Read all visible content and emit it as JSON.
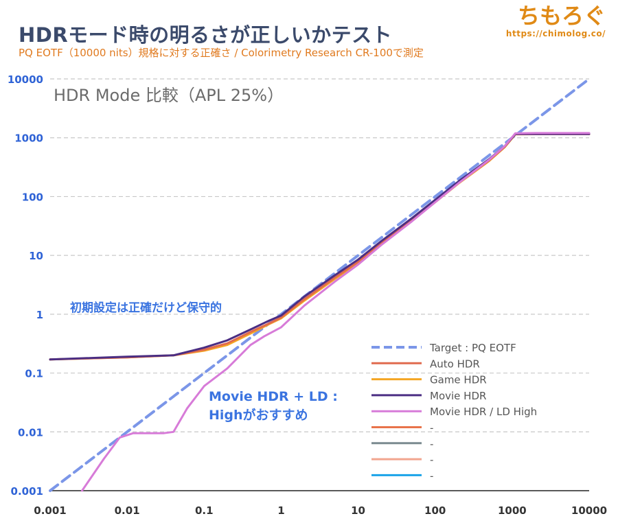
{
  "header": {
    "title": "HDRモード時の明るさが正しいかテスト",
    "subtitle": "PQ EOTF（10000 nits）規格に対する正確さ / Colorimetry Research CR-100で測定",
    "brand_name": "ちもろぐ",
    "brand_url": "https://chimolog.co/"
  },
  "chart_data": {
    "type": "line",
    "title": "HDR Mode 比較（APL 25%）",
    "xscale": "log",
    "yscale": "log",
    "xlim": [
      0.001,
      10000
    ],
    "ylim": [
      0.001,
      10000
    ],
    "xticks": [
      "0.001",
      "0.01",
      "0.1",
      "1",
      "10",
      "100",
      "1000",
      "10000"
    ],
    "yticks": [
      "0.001",
      "0.01",
      "0.1",
      "1",
      "10",
      "100",
      "1000",
      "10000"
    ],
    "grid": true,
    "legend_position": "lower-right",
    "annotations": [
      "初期設定は正確だけど保守的",
      "Movie HDR + LD :",
      "Highがおすすめ"
    ],
    "series": [
      {
        "name": "Target : PQ EOTF",
        "color": "#7b96e8",
        "dash": true,
        "x": [
          0.001,
          10000
        ],
        "y": [
          0.001,
          10000
        ]
      },
      {
        "name": "Auto HDR",
        "color": "#e06a4e",
        "x": [
          0.001,
          0.01,
          0.04,
          0.1,
          0.2,
          0.4,
          0.7,
          1,
          2,
          5,
          10,
          20,
          50,
          100,
          200,
          500,
          800,
          1100,
          2000,
          10000
        ],
        "y": [
          0.17,
          0.185,
          0.2,
          0.25,
          0.32,
          0.5,
          0.7,
          0.88,
          1.8,
          4.2,
          7.8,
          16,
          40,
          82,
          170,
          410,
          700,
          1150,
          1150,
          1150
        ]
      },
      {
        "name": "Game HDR",
        "color": "#f5a623",
        "x": [
          0.001,
          0.01,
          0.04,
          0.1,
          0.2,
          0.4,
          0.7,
          1,
          2,
          5,
          10,
          20,
          50,
          100,
          200,
          500,
          800,
          1100,
          2000,
          10000
        ],
        "y": [
          0.17,
          0.185,
          0.2,
          0.24,
          0.3,
          0.47,
          0.68,
          0.85,
          1.7,
          4.0,
          7.5,
          15.5,
          39,
          80,
          166,
          400,
          690,
          1140,
          1150,
          1150
        ]
      },
      {
        "name": "Movie HDR",
        "color": "#4b2e83",
        "x": [
          0.001,
          0.01,
          0.04,
          0.1,
          0.2,
          0.4,
          0.7,
          1,
          2,
          5,
          10,
          20,
          50,
          100,
          200,
          500,
          800,
          1100,
          2000,
          10000
        ],
        "y": [
          0.17,
          0.19,
          0.2,
          0.27,
          0.36,
          0.55,
          0.78,
          0.95,
          2.0,
          4.6,
          8.5,
          17.5,
          43,
          88,
          180,
          430,
          720,
          1160,
          1160,
          1160
        ]
      },
      {
        "name": "Movie HDR / LD High",
        "color": "#d77bd8",
        "x": [
          0.0026,
          0.005,
          0.008,
          0.012,
          0.02,
          0.03,
          0.04,
          0.06,
          0.1,
          0.2,
          0.4,
          0.6,
          1,
          2,
          5,
          10,
          20,
          50,
          100,
          200,
          500,
          800,
          1100,
          2000,
          10000
        ],
        "y": [
          0.001,
          0.0035,
          0.008,
          0.0095,
          0.0095,
          0.0095,
          0.01,
          0.025,
          0.06,
          0.12,
          0.3,
          0.42,
          0.6,
          1.4,
          3.6,
          7.0,
          15,
          38,
          80,
          168,
          420,
          720,
          1190,
          1200,
          1200
        ]
      },
      {
        "name": "-",
        "color": "#e8734a",
        "x": [],
        "y": []
      },
      {
        "name": "-",
        "color": "#7a8a8f",
        "x": [],
        "y": []
      },
      {
        "name": "-",
        "color": "#f2a58f",
        "x": [],
        "y": []
      },
      {
        "name": "-",
        "color": "#1aa3e8",
        "x": [],
        "y": []
      }
    ]
  }
}
